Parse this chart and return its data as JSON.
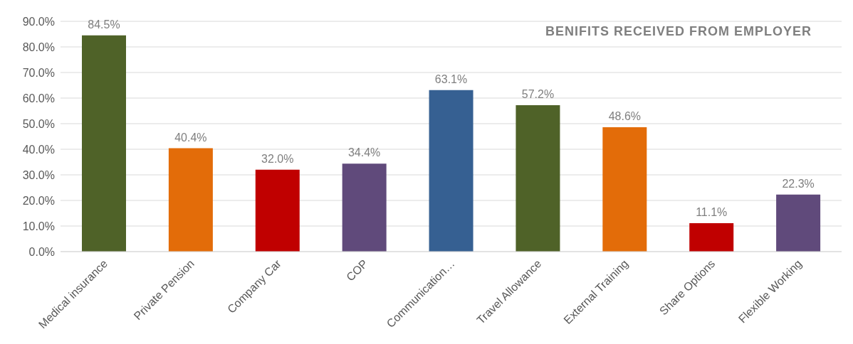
{
  "chart_data": {
    "type": "bar",
    "title": "BENIFITS RECEIVED FROM EMPLOYER",
    "categories": [
      "Medical insurance",
      "Private Pension",
      "Company Car",
      "COP",
      "Communication…",
      "Travel Allowance",
      "External Training",
      "Share Options",
      "Flexible Working"
    ],
    "values": [
      84.5,
      40.4,
      32.0,
      34.4,
      63.1,
      57.2,
      48.6,
      11.1,
      22.3
    ],
    "colors": [
      "#4f6228",
      "#e36c09",
      "#c00000",
      "#604a7b",
      "#366092",
      "#4f6228",
      "#e36c09",
      "#c00000",
      "#604a7b"
    ],
    "value_labels": [
      "84.5%",
      "40.4%",
      "32.0%",
      "34.4%",
      "63.1%",
      "57.2%",
      "48.6%",
      "11.1%",
      "22.3%"
    ],
    "ylim": [
      0,
      90
    ],
    "yticks": [
      {
        "value": 0,
        "label": "0.0%"
      },
      {
        "value": 10,
        "label": "10.0%"
      },
      {
        "value": 20,
        "label": "20.0%"
      },
      {
        "value": 30,
        "label": "30.0%"
      },
      {
        "value": 40,
        "label": "40.0%"
      },
      {
        "value": 50,
        "label": "50.0%"
      },
      {
        "value": 60,
        "label": "60.0%"
      },
      {
        "value": 70,
        "label": "70.0%"
      },
      {
        "value": 80,
        "label": "80.0%"
      },
      {
        "value": 90,
        "label": "90.0%"
      }
    ],
    "grid": "y",
    "legend": false
  }
}
